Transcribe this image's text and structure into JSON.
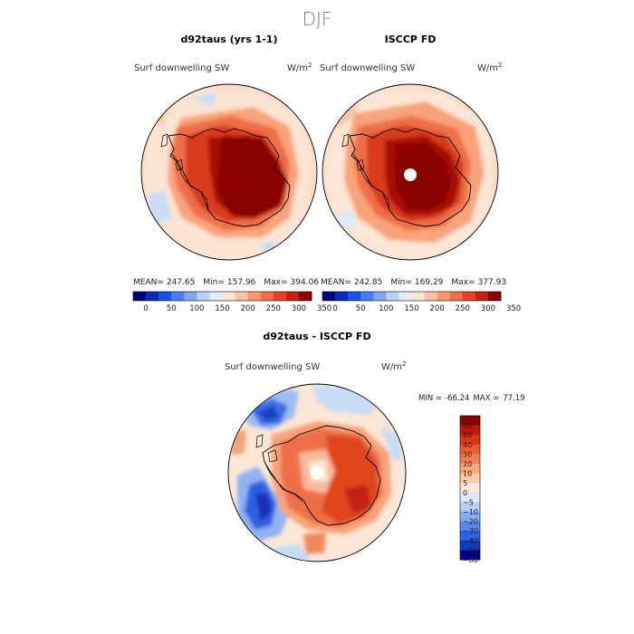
{
  "chart_data": [
    {
      "type": "heatmap",
      "projection": "south-polar-stereographic",
      "figure_title": "DJF",
      "panel_title": "d92taus (yrs 1-1)",
      "variable": "Surf downwelling SW",
      "units": "W/m",
      "units_exp": "2",
      "stats": {
        "mean": "247.65",
        "min": "157.96",
        "max": "394.06"
      },
      "stats_labels": {
        "mean": "MEAN=",
        "min": "Min=",
        "max": "Max="
      },
      "colorbar_ticks": [
        "0",
        "50",
        "100",
        "150",
        "200",
        "250",
        "300",
        "350"
      ],
      "colorbar_colors": [
        "#00007f",
        "#0a2bb4",
        "#1e4fe6",
        "#4a7cf0",
        "#7fa5f5",
        "#b8d2f8",
        "#e3eefb",
        "#fde6d5",
        "#fbc2a3",
        "#f89970",
        "#f26e47",
        "#e44326",
        "#c42313",
        "#8b0000"
      ]
    },
    {
      "type": "heatmap",
      "projection": "south-polar-stereographic",
      "panel_title": "ISCCP FD",
      "variable": "Surf downwelling SW",
      "units": "W/m",
      "units_exp": "2",
      "stats": {
        "mean": "242.85",
        "min": "169.29",
        "max": "377.93"
      },
      "stats_labels": {
        "mean": "MEAN=",
        "min": "Min=",
        "max": "Max="
      },
      "colorbar_ticks": [
        "0",
        "50",
        "100",
        "150",
        "200",
        "250",
        "300",
        "350"
      ]
    },
    {
      "type": "heatmap",
      "projection": "south-polar-stereographic",
      "panel_title": "d92taus - ISCCP FD",
      "variable": "Surf downwelling SW",
      "units": "W/m",
      "units_exp": "2",
      "min_max_text": {
        "min_label": "MIN =",
        "min": "-66.24",
        "max_label": "MAX =",
        "max": "77.19"
      },
      "colorbar_levels": [
        "80",
        "60",
        "40",
        "30",
        "20",
        "10",
        "5",
        "0",
        "−5",
        "−10",
        "−20",
        "−30",
        "−40",
        "−60",
        "−80"
      ],
      "colorbar_colors": [
        "#8b0000",
        "#c0180a",
        "#dd3418",
        "#ef5a2f",
        "#f5804f",
        "#f8a578",
        "#fbcaa8",
        "#fde7d6",
        "#dde9fa",
        "#b3cff6",
        "#84aef1",
        "#5588ec",
        "#2c62e2",
        "#1238c4",
        "#00008b"
      ]
    }
  ],
  "colors": {
    "ocean_light": "#fbe1d0",
    "ocean_mid": "#f8b896",
    "land_dark": "#8b0000",
    "land_mid": "#cc2a0e",
    "diff_ocean": "#fde7d6"
  }
}
